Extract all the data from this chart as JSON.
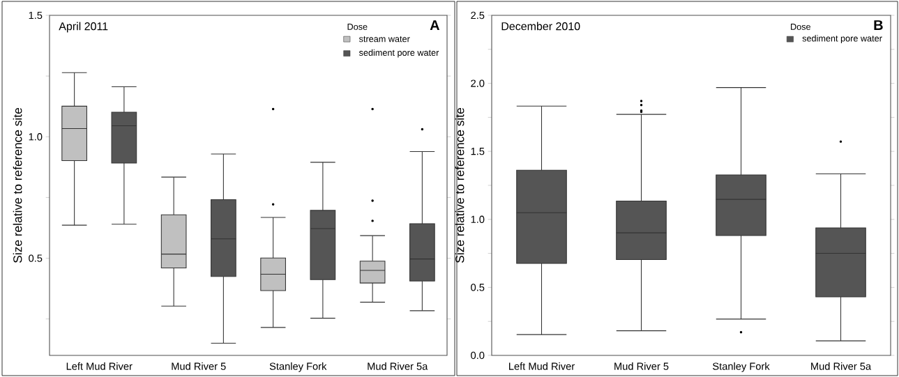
{
  "chart_data": [
    {
      "type": "box",
      "title": "April 2011",
      "ylabel": "Size relative to reference site",
      "legend_title": "Dose",
      "legend": "top right",
      "annotations": [
        "A"
      ],
      "categories": [
        "Left Mud River",
        "Mud River 5",
        "Stanley Fork",
        "Mud River 5a"
      ],
      "ylim": [
        0.1,
        1.5
      ],
      "yticks": [
        {
          "value": 0.25,
          "label": null
        },
        0.5,
        {
          "value": 0.75,
          "label": null
        },
        {
          "value": 1.0,
          "label": "1.0"
        },
        {
          "value": 1.25,
          "label": null
        },
        1.5
      ],
      "series": [
        {
          "name": "stream water",
          "color": "#c0c0c0",
          "boxes": [
            {
              "low": 0.636,
              "q1": 0.902,
              "median": 1.034,
              "q3": 1.126,
              "high": 1.264
            },
            {
              "low": 0.303,
              "q1": 0.46,
              "median": 0.517,
              "q3": 0.679,
              "high": 0.834
            },
            {
              "low": 0.215,
              "q1": 0.367,
              "median": 0.434,
              "q3": 0.501,
              "high": 0.668,
              "outliers": [
                0.722,
                1.114
              ]
            },
            {
              "low": 0.319,
              "q1": 0.398,
              "median": 0.45,
              "q3": 0.488,
              "high": 0.593,
              "outliers": [
                0.654,
                0.737,
                1.114
              ]
            }
          ]
        },
        {
          "name": "sediment pore water",
          "color": "#555555",
          "boxes": [
            {
              "low": 0.64,
              "q1": 0.892,
              "median": 1.045,
              "q3": 1.101,
              "high": 1.206
            },
            {
              "low": 0.15,
              "q1": 0.425,
              "median": 0.58,
              "q3": 0.741,
              "high": 0.929
            },
            {
              "low": 0.253,
              "q1": 0.412,
              "median": 0.622,
              "q3": 0.697,
              "high": 0.895
            },
            {
              "low": 0.284,
              "q1": 0.406,
              "median": 0.497,
              "q3": 0.642,
              "high": 0.939,
              "outliers": [
                1.031
              ]
            }
          ]
        }
      ]
    },
    {
      "type": "box",
      "title": "December 2010",
      "ylabel": "Size relative to reference site",
      "legend_title": "Dose",
      "legend": "top right",
      "annotations": [
        "B"
      ],
      "categories": [
        "Left Mud River",
        "Mud River 5",
        "Stanley Fork",
        "Mud River 5a"
      ],
      "ylim": [
        0,
        2.5
      ],
      "yticks": [
        {
          "value": 0,
          "label": "0.0"
        },
        {
          "value": 0.25,
          "label": null
        },
        0.5,
        {
          "value": 0.75,
          "label": null
        },
        {
          "value": 1.0,
          "label": "1.0"
        },
        {
          "value": 1.25,
          "label": null
        },
        1.5,
        {
          "value": 1.75,
          "label": null
        },
        {
          "value": 2.0,
          "label": "2.0"
        },
        {
          "value": 2.25,
          "label": null
        },
        2.5
      ],
      "series": [
        {
          "name": "sediment pore water",
          "color": "#555555",
          "boxes": [
            {
              "low": 0.153,
              "q1": 0.676,
              "median": 1.049,
              "q3": 1.361,
              "high": 1.833
            },
            {
              "low": 0.181,
              "q1": 0.704,
              "median": 0.901,
              "q3": 1.135,
              "high": 1.772,
              "outliers": [
                1.79,
                1.8,
                1.84,
                1.87
              ]
            },
            {
              "low": 0.267,
              "q1": 0.881,
              "median": 1.147,
              "q3": 1.327,
              "high": 1.969,
              "outliers": [
                0.17
              ]
            },
            {
              "low": 0.107,
              "q1": 0.431,
              "median": 0.75,
              "q3": 0.937,
              "high": 1.334,
              "outliers": [
                1.572
              ]
            }
          ]
        }
      ]
    }
  ]
}
